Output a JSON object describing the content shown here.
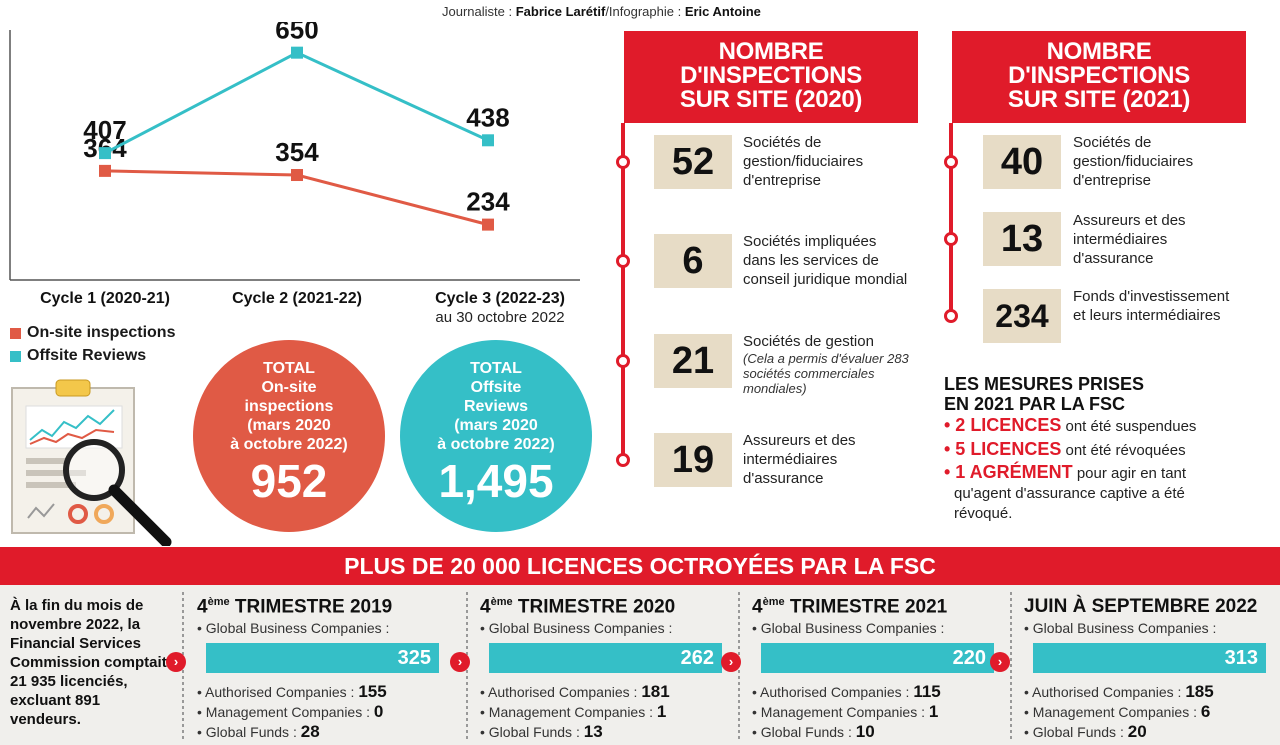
{
  "credit": {
    "journalist_label": "Journaliste :",
    "journalist": "Fabrice Larétif",
    "infographie_label": "/Infographie :",
    "infographie": "Eric Antoine"
  },
  "chart_data": {
    "type": "line",
    "categories": [
      "Cycle 1 (2020-21)",
      "Cycle 2 (2021-22)",
      "Cycle 3 (2022-23)"
    ],
    "category_note": "au 30 octobre 2022",
    "series": [
      {
        "name": "On-site inspections",
        "color": "#e05a45",
        "values": [
          364,
          354,
          234
        ]
      },
      {
        "name": "Offsite Reviews",
        "color": "#35bfc7",
        "values": [
          407,
          650,
          438
        ]
      }
    ],
    "ylim": [
      100,
      700
    ]
  },
  "totals": {
    "onsite": {
      "label": "TOTAL On-site inspections (mars 2020 à octobre 2022)",
      "l1": "TOTAL",
      "l2": "On-site",
      "l3": "inspections",
      "l4": "(mars 2020",
      "l5": "à octobre 2022)",
      "value": "952",
      "color": "#e05a45"
    },
    "offsite": {
      "l1": "TOTAL",
      "l2": "Offsite",
      "l3": "Reviews",
      "l4": "(mars 2020",
      "l5": "à octobre 2022)",
      "value": "1,495",
      "color": "#35bfc7"
    }
  },
  "insp2020": {
    "title1": "NOMBRE",
    "title2": "D'INSPECTIONS",
    "title3": "SUR SITE (2020)",
    "items": [
      {
        "value": "52",
        "text": "Sociétés de gestion/fiduciaires d'entreprise",
        "note": ""
      },
      {
        "value": "6",
        "text": "Sociétés impliquées dans les services de conseil juridique mondial",
        "note": ""
      },
      {
        "value": "21",
        "text": "Sociétés de gestion",
        "note": "(Cela a permis d'évaluer 283 sociétés commerciales mondiales)"
      },
      {
        "value": "19",
        "text": "Assureurs et des intermédiaires d'assurance",
        "note": ""
      }
    ]
  },
  "insp2021": {
    "title1": "NOMBRE",
    "title2": "D'INSPECTIONS",
    "title3": "SUR SITE (2021)",
    "items": [
      {
        "value": "40",
        "text": "Sociétés de gestion/fiduciaires d'entreprise"
      },
      {
        "value": "13",
        "text": "Assureurs et des intermédiaires d'assurance"
      },
      {
        "value": "234",
        "text": "Fonds d'investissement et leurs intermédiaires"
      }
    ]
  },
  "mesures": {
    "title1": "LES MESURES PRISES",
    "title2": "EN 2021 PAR LA FSC",
    "m1_bold": "• 2 LICENCES",
    "m1_text": " ont été suspendues",
    "m2_bold": "• 5 LICENCES",
    "m2_text": " ont été révoquées",
    "m3_bold": "• 1 AGRÉMENT",
    "m3_text": " pour agir en tant",
    "m3_text2": "qu'agent d'assurance captive a été",
    "m3_text3": "révoqué."
  },
  "banner": "PLUS DE 20 000 LICENCES OCTROYÉES PAR LA FSC",
  "intro": "À la fin du mois de novembre 2022, la Financial Services Commission comptait 21 935 licenciés, excluant 891 vendeurs.",
  "quarters": [
    {
      "num": "4",
      "sup": "ème",
      "title": " TRIMESTRE 2019",
      "gbc_label": "• Global Business Companies :",
      "gbc": "325",
      "auth_label": "• Authorised Companies : ",
      "auth": "155",
      "mgmt_label": "• Management Companies : ",
      "mgmt": "0",
      "funds_label": "• Global Funds : ",
      "funds": "28"
    },
    {
      "num": "4",
      "sup": "ème",
      "title": " TRIMESTRE 2020",
      "gbc_label": "• Global Business Companies :",
      "gbc": "262",
      "auth_label": "• Authorised Companies : ",
      "auth": "181",
      "mgmt_label": "• Management Companies : ",
      "mgmt": "1",
      "funds_label": "• Global Funds : ",
      "funds": "13"
    },
    {
      "num": "4",
      "sup": "ème",
      "title": " TRIMESTRE 2021",
      "gbc_label": "• Global Business Companies :",
      "gbc": "220",
      "auth_label": "• Authorised Companies : ",
      "auth": "115",
      "mgmt_label": "• Management Companies : ",
      "mgmt": "1",
      "funds_label": "• Global Funds : ",
      "funds": "10"
    },
    {
      "num": "",
      "sup": "",
      "title": "JUIN À SEPTEMBRE 2022",
      "gbc_label": "• Global Business Companies :",
      "gbc": "313",
      "auth_label": "• Authorised Companies : ",
      "auth": "185",
      "mgmt_label": "• Management Companies : ",
      "mgmt": "6",
      "funds_label": "• Global Funds : ",
      "funds": "20"
    }
  ],
  "arrow_glyph": "›",
  "icons": [
    "clipboard-chart-icon",
    "magnifier-icon"
  ]
}
